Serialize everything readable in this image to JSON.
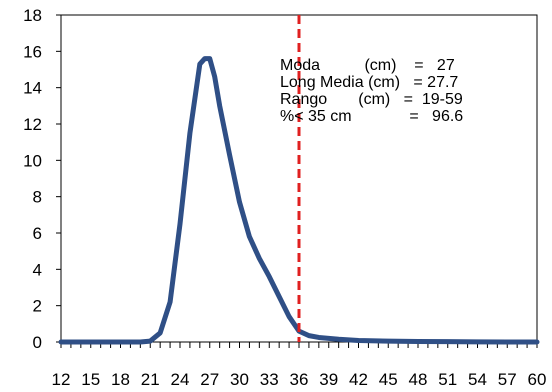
{
  "chart_data": {
    "type": "line",
    "title": "",
    "xlabel": "",
    "ylabel": "",
    "xlim": [
      12,
      60
    ],
    "ylim": [
      0,
      18
    ],
    "yticks": [
      0,
      2,
      4,
      6,
      8,
      10,
      12,
      14,
      16,
      18
    ],
    "xtick_labels": [
      "12",
      "15",
      "18",
      "21",
      "24",
      "27",
      "30",
      "33",
      "36",
      "39",
      "42",
      "45",
      "48",
      "51",
      "54",
      "57",
      "60"
    ],
    "series": [
      {
        "color": "#2f4f86",
        "x": [
          12,
          13,
          14,
          15,
          16,
          17,
          18,
          19,
          20,
          21,
          22,
          23,
          24,
          25,
          26,
          26.5,
          27,
          27.5,
          28,
          29,
          30,
          31,
          32,
          33,
          34,
          35,
          36,
          37,
          38,
          40,
          42,
          45,
          48,
          51,
          54,
          57,
          60
        ],
        "y": [
          0,
          0,
          0,
          0,
          0,
          0,
          0,
          0,
          0,
          0.05,
          0.5,
          2.2,
          6.5,
          11.5,
          15.3,
          15.6,
          15.6,
          14.6,
          13,
          10.3,
          7.7,
          5.8,
          4.6,
          3.6,
          2.5,
          1.4,
          0.6,
          0.35,
          0.25,
          0.15,
          0.08,
          0.05,
          0.03,
          0.02,
          0.01,
          0,
          0
        ]
      }
    ],
    "reference_line": {
      "x": 36,
      "color": "#e02020",
      "style": "dashed"
    },
    "annotations": [
      "Moda          (cm)    =   27",
      "Long Media (cm)   = 27.7",
      "Rango       (cm)   =  19-59",
      "%< 35 cm             =   96.6"
    ]
  }
}
